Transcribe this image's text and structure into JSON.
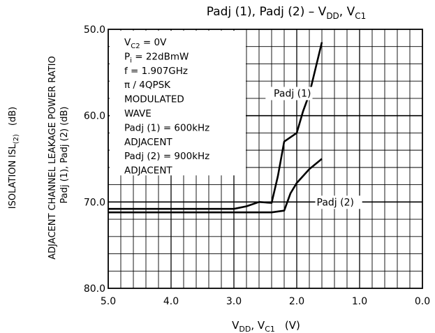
{
  "chart_data": {
    "type": "line",
    "title": "Padj (1),  Padj (2)  –  V",
    "title_sub_1": "DD",
    "title_sep": ", V",
    "title_sub_2": "C1",
    "xlabel": "V",
    "xlabel_sub_1": "DD",
    "xlabel_sep": ", V",
    "xlabel_sub_2": "C1",
    "xlabel_unit": "(V)",
    "ylabel_outer": "ISOLATION   ISL",
    "ylabel_outer_sub": "(2)",
    "ylabel_outer_unit": "(dB)",
    "ylabel_main": "ADJACENT CHANNEL LEAKAGE POWER RATIO",
    "ylabel_sub": "Padj (1), Padj (2)   (dB)",
    "xlim": [
      5.0,
      0.0
    ],
    "ylim": [
      80.0,
      50.0
    ],
    "x_ticks": [
      "5.0",
      "4.0",
      "3.0",
      "2.0",
      "1.0",
      "0.0"
    ],
    "y_ticks": [
      "50.0",
      "60.0",
      "70.0",
      "80.0"
    ],
    "grid": true,
    "legend_box": [
      {
        "text": "V",
        "sub": "C2",
        "rest": " = 0V"
      },
      {
        "text": "P",
        "sub": "i",
        "rest": " = 22dBmW"
      },
      {
        "text": "f = 1.907GHz"
      },
      {
        "text": "π / 4QPSK"
      },
      {
        "text": "MODULATED"
      },
      {
        "text": "WAVE"
      },
      {
        "text": "Padj (1) = 600kHz"
      },
      {
        "text": "ADJACENT"
      },
      {
        "text": "Padj (2) = 900kHz"
      },
      {
        "text": "ADJACENT"
      }
    ],
    "series": [
      {
        "name": "Padj (1)",
        "x": [
          5.0,
          3.0,
          2.8,
          2.6,
          2.4,
          2.3,
          2.2,
          2.0,
          1.9,
          1.8,
          1.6
        ],
        "y": [
          70.8,
          70.8,
          70.5,
          70.0,
          70.1,
          67.0,
          63.0,
          62.0,
          59.5,
          57.5,
          51.5
        ]
      },
      {
        "name": "Padj (2)",
        "x": [
          5.0,
          2.4,
          2.2,
          2.1,
          2.0,
          1.8,
          1.6
        ],
        "y": [
          71.2,
          71.2,
          71.0,
          69.0,
          67.8,
          66.2,
          65.0
        ]
      }
    ]
  }
}
